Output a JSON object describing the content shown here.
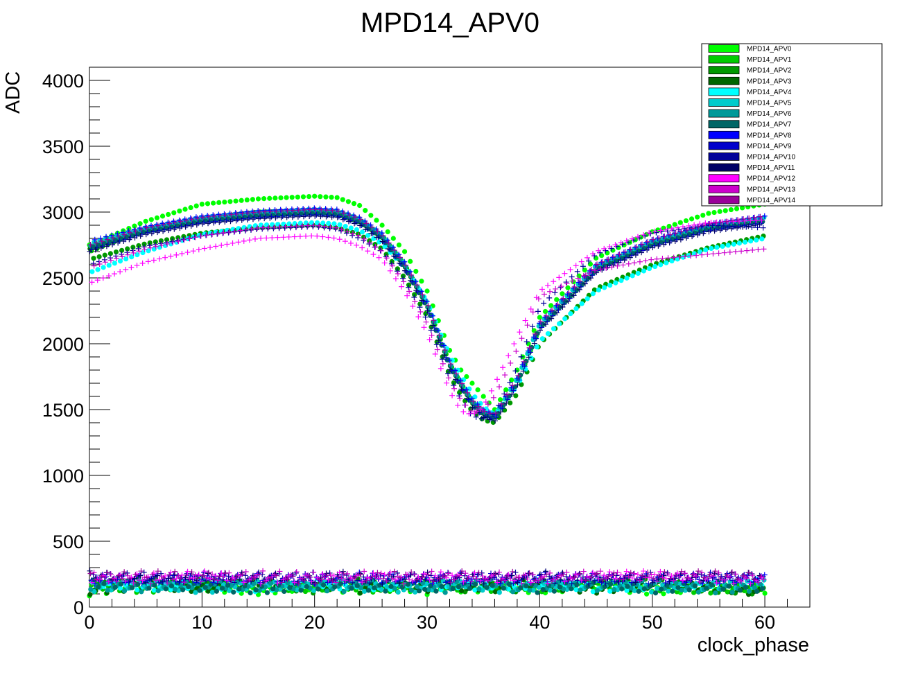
{
  "chart_data": {
    "type": "scatter",
    "title": "MPD14_APV0",
    "xlabel": "clock_phase",
    "ylabel": "ADC",
    "xlim": [
      0,
      64
    ],
    "ylim": [
      0,
      4100
    ],
    "xticks": [
      0,
      10,
      20,
      30,
      40,
      50,
      60
    ],
    "yticks": [
      0,
      500,
      1000,
      1500,
      2000,
      2500,
      3000,
      3500,
      4000
    ],
    "grid": false,
    "legend_placement": "top-right",
    "x": [
      0,
      5,
      10,
      15,
      20,
      22,
      24,
      26,
      28,
      30,
      32,
      33,
      34,
      35,
      36,
      38,
      40,
      45,
      50,
      55,
      60
    ],
    "series": [
      {
        "name": "MPD14_APV0",
        "color": "#00ff00",
        "marker": "circle",
        "high": [
          2750,
          2930,
          3060,
          3100,
          3120,
          3110,
          3050,
          2900,
          2700,
          2400,
          1950,
          1800,
          1700,
          1600,
          1500,
          1800,
          2200,
          2650,
          2850,
          2990,
          3060
        ],
        "low": [
          110,
          170,
          150,
          120,
          160,
          140,
          130,
          170,
          150,
          120,
          160,
          140,
          130,
          150,
          170,
          140,
          130,
          160,
          120,
          150,
          130
        ]
      },
      {
        "name": "MPD14_APV1",
        "color": "#00cc00",
        "marker": "circle",
        "high": [
          2700,
          2870,
          2950,
          3000,
          3010,
          3000,
          2940,
          2820,
          2600,
          2300,
          1850,
          1700,
          1560,
          1480,
          1430,
          1700,
          2120,
          2560,
          2760,
          2880,
          2940
        ],
        "low": [
          170,
          130,
          190,
          160,
          140,
          180,
          150,
          130,
          170,
          190,
          140,
          160,
          180,
          130,
          150,
          170,
          140,
          180,
          150,
          130,
          160
        ]
      },
      {
        "name": "MPD14_APV2",
        "color": "#009900",
        "marker": "circle",
        "high": [
          2640,
          2760,
          2840,
          2880,
          2900,
          2880,
          2830,
          2720,
          2500,
          2210,
          1760,
          1610,
          1490,
          1420,
          1400,
          1620,
          2000,
          2420,
          2600,
          2730,
          2820
        ],
        "low": [
          150,
          200,
          160,
          180,
          130,
          170,
          190,
          150,
          140,
          180,
          170,
          130,
          160,
          190,
          150,
          140,
          180,
          160,
          190,
          140,
          120
        ]
      },
      {
        "name": "MPD14_APV3",
        "color": "#006600",
        "marker": "circle",
        "high": [
          2720,
          2860,
          2940,
          2980,
          3000,
          2990,
          2930,
          2810,
          2590,
          2290,
          1840,
          1690,
          1550,
          1470,
          1440,
          1710,
          2130,
          2570,
          2770,
          2890,
          2950
        ],
        "low": [
          120,
          160,
          140,
          190,
          170,
          150,
          130,
          180,
          160,
          140,
          190,
          150,
          130,
          170,
          140,
          190,
          160,
          130,
          170,
          150,
          110
        ]
      },
      {
        "name": "MPD14_APV4",
        "color": "#00ffff",
        "marker": "circle",
        "high": [
          2540,
          2700,
          2830,
          2900,
          2920,
          2910,
          2860,
          2760,
          2580,
          2320,
          1910,
          1760,
          1620,
          1520,
          1460,
          1680,
          2020,
          2400,
          2580,
          2720,
          2800
        ],
        "low": [
          190,
          150,
          170,
          140,
          190,
          160,
          180,
          140,
          190,
          170,
          150,
          180,
          160,
          140,
          180,
          150,
          190,
          140,
          160,
          180,
          190
        ]
      },
      {
        "name": "MPD14_APV5",
        "color": "#00cccc",
        "marker": "circle",
        "high": [
          2760,
          2880,
          2960,
          3000,
          3020,
          3010,
          2950,
          2830,
          2610,
          2310,
          1860,
          1710,
          1570,
          1490,
          1450,
          1730,
          2150,
          2590,
          2780,
          2900,
          2960
        ],
        "low": [
          140,
          180,
          130,
          170,
          150,
          190,
          140,
          160,
          130,
          150,
          180,
          170,
          190,
          150,
          130,
          160,
          150,
          170,
          140,
          160,
          180
        ]
      },
      {
        "name": "MPD14_APV6",
        "color": "#009999",
        "marker": "circle",
        "high": [
          2740,
          2870,
          2950,
          2990,
          3010,
          3000,
          2940,
          2820,
          2600,
          2300,
          1850,
          1700,
          1560,
          1480,
          1440,
          1720,
          2140,
          2580,
          2770,
          2890,
          2950
        ],
        "low": [
          160,
          140,
          180,
          150,
          170,
          130,
          170,
          190,
          150,
          160,
          130,
          190,
          150,
          170,
          190,
          130,
          170,
          150,
          180,
          130,
          150
        ]
      },
      {
        "name": "MPD14_APV7",
        "color": "#006666",
        "marker": "circle",
        "high": [
          2730,
          2850,
          2930,
          2970,
          2990,
          2980,
          2920,
          2800,
          2580,
          2280,
          1830,
          1680,
          1540,
          1460,
          1430,
          1700,
          2120,
          2560,
          2750,
          2870,
          2930
        ],
        "low": [
          180,
          170,
          150,
          130,
          160,
          180,
          160,
          140,
          180,
          130,
          170,
          150,
          170,
          180,
          160,
          180,
          130,
          190,
          130,
          170,
          140
        ]
      },
      {
        "name": "MPD14_APV8",
        "color": "#0000ff",
        "marker": "cross",
        "high": [
          2780,
          2890,
          2970,
          3010,
          3030,
          3020,
          2960,
          2840,
          2620,
          2320,
          1870,
          1720,
          1580,
          1500,
          1460,
          1740,
          2160,
          2600,
          2790,
          2910,
          2970
        ],
        "low": [
          200,
          220,
          210,
          230,
          200,
          220,
          240,
          210,
          230,
          200,
          220,
          240,
          210,
          230,
          200,
          220,
          240,
          210,
          230,
          200,
          220
        ]
      },
      {
        "name": "MPD14_APV9",
        "color": "#0000cc",
        "marker": "cross",
        "high": [
          2710,
          2840,
          2920,
          2960,
          2980,
          2970,
          2910,
          2790,
          2570,
          2270,
          1820,
          1670,
          1530,
          1450,
          1420,
          1690,
          2110,
          2550,
          2740,
          2860,
          2920
        ],
        "low": [
          230,
          200,
          240,
          210,
          230,
          200,
          220,
          240,
          200,
          230,
          210,
          200,
          230,
          210,
          240,
          200,
          220,
          230,
          200,
          240,
          210
        ]
      },
      {
        "name": "MPD14_APV10",
        "color": "#000099",
        "marker": "cross",
        "high": [
          2600,
          2740,
          2820,
          2870,
          2890,
          2870,
          2800,
          2700,
          2480,
          2180,
          1740,
          1580,
          1450,
          1430,
          1470,
          1820,
          2280,
          2680,
          2840,
          2900,
          2880
        ],
        "low": [
          220,
          240,
          200,
          220,
          240,
          230,
          200,
          220,
          240,
          210,
          240,
          220,
          200,
          240,
          220,
          240,
          210,
          200,
          240,
          220,
          230
        ]
      },
      {
        "name": "MPD14_APV11",
        "color": "#000066",
        "marker": "cross",
        "high": [
          2700,
          2830,
          2910,
          2950,
          2970,
          2960,
          2900,
          2780,
          2560,
          2260,
          1810,
          1660,
          1520,
          1440,
          1410,
          1680,
          2100,
          2540,
          2730,
          2850,
          2910
        ],
        "low": [
          250,
          210,
          230,
          240,
          210,
          250,
          230,
          200,
          210,
          240,
          200,
          230,
          250,
          200,
          230,
          210,
          250,
          220,
          210,
          230,
          240
        ]
      },
      {
        "name": "MPD14_APV12",
        "color": "#ff00ff",
        "marker": "cross",
        "high": [
          2460,
          2620,
          2720,
          2800,
          2820,
          2800,
          2740,
          2640,
          2400,
          2080,
          1640,
          1490,
          1460,
          1520,
          1690,
          2050,
          2400,
          2700,
          2850,
          2920,
          2940
        ],
        "low": [
          210,
          230,
          250,
          200,
          220,
          240,
          210,
          250,
          220,
          230,
          250,
          210,
          240,
          220,
          210,
          230,
          200,
          240,
          250,
          210,
          200
        ]
      },
      {
        "name": "MPD14_APV13",
        "color": "#cc00cc",
        "marker": "cross",
        "high": [
          2580,
          2720,
          2820,
          2880,
          2900,
          2880,
          2820,
          2700,
          2460,
          2150,
          1720,
          1570,
          1480,
          1500,
          1600,
          1960,
          2360,
          2560,
          2640,
          2680,
          2720
        ],
        "low": [
          240,
          200,
          220,
          250,
          240,
          210,
          250,
          230,
          200,
          250,
          230,
          240,
          220,
          210,
          250,
          200,
          230,
          250,
          220,
          240,
          210
        ]
      },
      {
        "name": "MPD14_APV14",
        "color": "#990099",
        "marker": "cross",
        "high": [
          2750,
          2880,
          2960,
          3000,
          3020,
          3010,
          2950,
          2830,
          2610,
          2310,
          1860,
          1710,
          1570,
          1490,
          1460,
          1740,
          2160,
          2600,
          2790,
          2910,
          2970
        ],
        "low": [
          230,
          250,
          240,
          220,
          200,
          230,
          220,
          240,
          250,
          220,
          210,
          250,
          230,
          240,
          220,
          250,
          220,
          230,
          240,
          250,
          230
        ]
      }
    ]
  }
}
